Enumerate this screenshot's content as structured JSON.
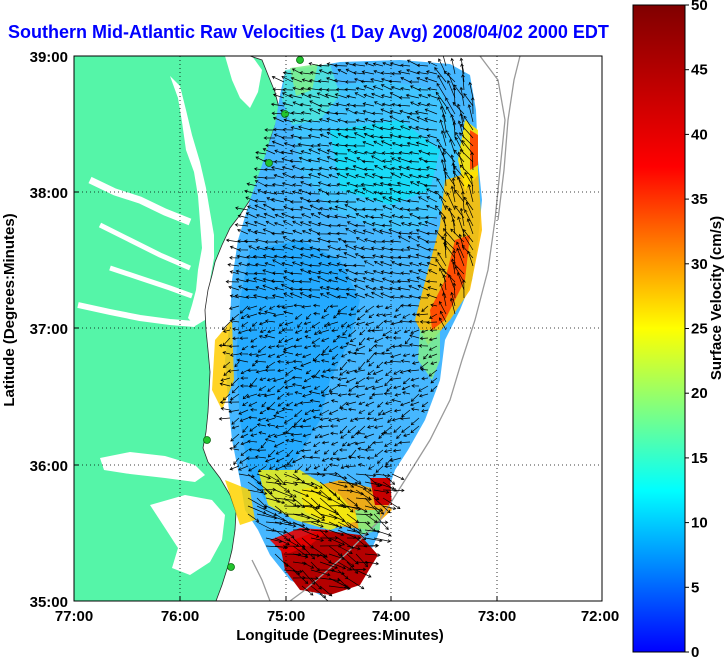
{
  "title": "Southern Mid-Atlantic Raw Velocities (1 Day Avg) 2008/04/02 2000 EDT",
  "map": {
    "xlabel": "Longitude (Degrees:Minutes)",
    "ylabel": "Latitude (Degrees:Minutes)",
    "lon_range": [
      -77,
      -72
    ],
    "lat_range": [
      35,
      39
    ],
    "x_ticks": [
      "77:00",
      "76:00",
      "75:00",
      "74:00",
      "73:00",
      "72:00"
    ],
    "y_ticks": [
      "39:00",
      "38:00",
      "37:00",
      "36:00",
      "35:00"
    ],
    "grid": "dotted",
    "land_color": "#55f5a8",
    "water_color": "#ffffff",
    "station_color": "#22c42e"
  },
  "colorbar": {
    "label": "Surface Velocity (cm/s)",
    "range": [
      0,
      50
    ],
    "ticks": [
      "0",
      "5",
      "10",
      "15",
      "20",
      "25",
      "30",
      "35",
      "40",
      "45",
      "50"
    ],
    "colormap": "jet"
  }
}
